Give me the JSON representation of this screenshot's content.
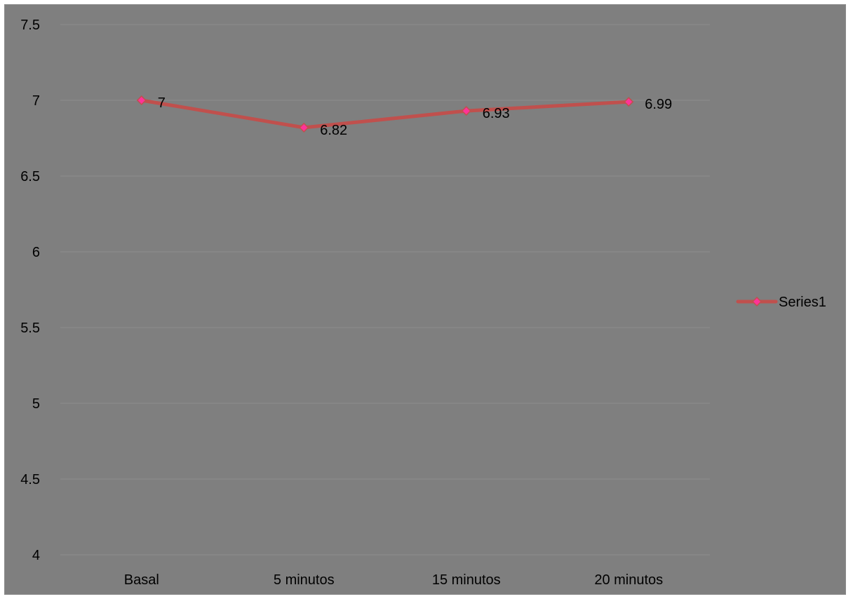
{
  "chart_data": {
    "type": "line",
    "title": "",
    "xlabel": "",
    "ylabel": "",
    "categories": [
      "Basal",
      "5 minutos",
      "15 minutos",
      "20 minutos"
    ],
    "series": [
      {
        "name": "Series1",
        "values": [
          7,
          6.82,
          6.93,
          6.99
        ],
        "data_labels": [
          "7",
          "6.82",
          "6.93",
          "6.99"
        ],
        "line_color": "#c0504d",
        "marker_color": "#ff3399",
        "marker": "diamond"
      }
    ],
    "ylim": [
      4,
      7.5
    ],
    "y_ticks": [
      4,
      4.5,
      5,
      5.5,
      6,
      6.5,
      7,
      7.5
    ],
    "y_tick_labels": [
      "4",
      "4.5",
      "5",
      "5.5",
      "6",
      "6.5",
      "7",
      "7.5"
    ],
    "grid": true,
    "legend_position": "right",
    "background_color": "#7f7f7f",
    "gridline_color": "#8e8e8e"
  }
}
